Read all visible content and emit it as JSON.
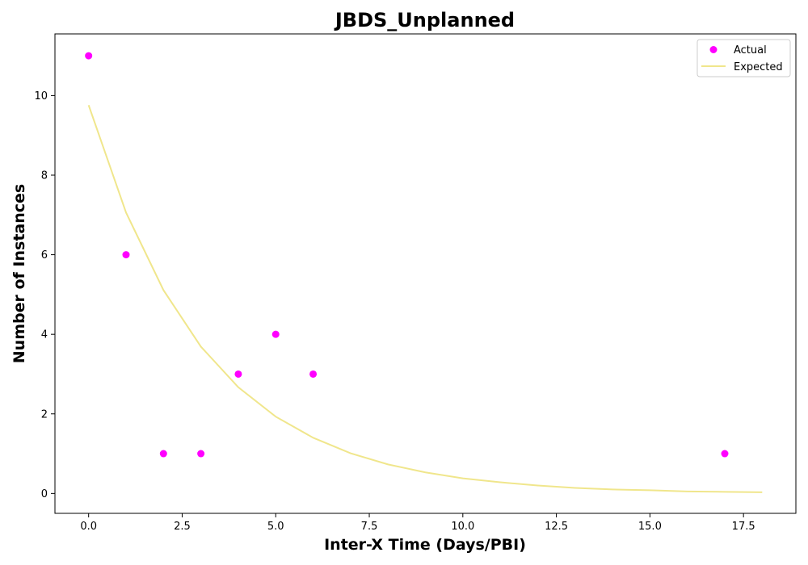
{
  "chart_data": {
    "type": "scatter",
    "title": "JBDS_Unplanned",
    "xlabel": "Inter-X Time (Days/PBI)",
    "ylabel": "Number of Instances",
    "xlim": [
      -0.9,
      18.9
    ],
    "ylim": [
      -0.5,
      11.55
    ],
    "xticks": [
      0.0,
      2.5,
      5.0,
      7.5,
      10.0,
      12.5,
      15.0,
      17.5
    ],
    "xtick_labels": [
      "0.0",
      "2.5",
      "5.0",
      "7.5",
      "10.0",
      "12.5",
      "15.0",
      "17.5"
    ],
    "yticks": [
      0,
      2,
      4,
      6,
      8,
      10
    ],
    "ytick_labels": [
      "0",
      "2",
      "4",
      "6",
      "8",
      "10"
    ],
    "grid": false,
    "legend_position": "top-right",
    "series": [
      {
        "name": "Actual",
        "kind": "scatter",
        "color": "#ff00ff",
        "x": [
          0,
          1,
          2,
          3,
          4,
          5,
          6,
          17
        ],
        "y": [
          11,
          6,
          1,
          1,
          3,
          4,
          3,
          1
        ]
      },
      {
        "name": "Expected",
        "kind": "line",
        "color": "#f0e68c",
        "x": [
          0,
          1,
          2,
          3,
          4,
          5,
          6,
          7,
          8,
          9,
          10,
          11,
          12,
          13,
          14,
          15,
          16,
          17,
          18
        ],
        "y": [
          9.76,
          7.06,
          5.11,
          3.69,
          2.67,
          1.93,
          1.4,
          1.01,
          0.73,
          0.53,
          0.38,
          0.28,
          0.2,
          0.14,
          0.1,
          0.08,
          0.05,
          0.04,
          0.03
        ]
      }
    ]
  }
}
